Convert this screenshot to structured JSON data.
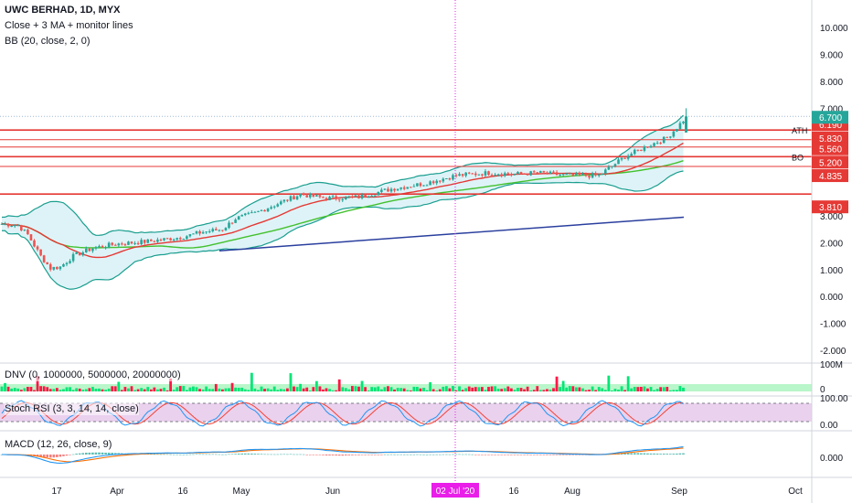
{
  "header": {
    "symbol_line": "UWC BERHAD, 1D, MYX",
    "study_1": "Close + 3 MA + monitor lines",
    "study_2": "BB (20, close, 2, 0)"
  },
  "panels": {
    "dnv_label": "DNV (0, 1000000, 5000000, 20000000)",
    "dnv_axis_top": "100M",
    "dnv_axis_bottom": "0",
    "stoch_label": "Stoch RSI (3, 3, 14, 14, close)",
    "stoch_axis_top": "100.00",
    "stoch_axis_bottom": "0.00",
    "macd_label": "MACD (12, 26, close, 9)",
    "macd_axis": "0.000"
  },
  "colors": {
    "bull": "#26a69a",
    "bear": "#ef5350",
    "level_line": "#e53935",
    "ma_red": "#e53935",
    "ma_green": "#43c12e",
    "ma_blue": "#2a3f9e",
    "bb_band": "#1a9e8f",
    "bb_fill": "#d6f0f5",
    "vol_green": "#00e676",
    "vol_red": "#ff1744",
    "rsi_fill": "#e1bee7",
    "stoch_k": "#2196f3",
    "stoch_d": "#f44336",
    "macd_line": "#2196f3",
    "signal_line": "#ff6d00",
    "hist_pos": "#26a69a",
    "hist_neg": "#ef5350",
    "date_highlight": "#e91ee9"
  },
  "chart_data": {
    "type": "candlestick",
    "title": "UWC BERHAD, 1D, MYX",
    "y_ticks": [
      "10.000",
      "9.000",
      "8.000",
      "7.000",
      "3.000",
      "2.000",
      "1.000",
      "0.000",
      "-1.000",
      "-2.000"
    ],
    "x_labels": [
      "17",
      "Apr",
      "16",
      "May",
      "Jun",
      "16",
      "Aug",
      "Sep",
      "Oct"
    ],
    "highlight_date": "02 Jul '20",
    "ylim": [
      -2.3,
      10.7
    ],
    "levels": [
      {
        "label": "ATH",
        "value": 6.19,
        "text": "6.190"
      },
      {
        "label": "",
        "value": 5.83,
        "text": "5.830"
      },
      {
        "label": "",
        "value": 5.56,
        "text": "5.560"
      },
      {
        "label": "BO",
        "value": 5.2,
        "text": "5.200"
      },
      {
        "label": "",
        "value": 4.835,
        "text": "4.835"
      },
      {
        "label": "",
        "value": 3.81,
        "text": "3.810"
      }
    ],
    "last_price": {
      "value": 6.7,
      "text": "6.700"
    },
    "price_anchors": [
      [
        0,
        2.7
      ],
      [
        5,
        2.65
      ],
      [
        8,
        2.3
      ],
      [
        12,
        1.5
      ],
      [
        15,
        1.05
      ],
      [
        18,
        1.1
      ],
      [
        22,
        1.5
      ],
      [
        28,
        1.8
      ],
      [
        35,
        1.95
      ],
      [
        45,
        2.05
      ],
      [
        55,
        2.2
      ],
      [
        62,
        2.4
      ],
      [
        68,
        2.5
      ],
      [
        72,
        2.9
      ],
      [
        78,
        3.1
      ],
      [
        84,
        3.4
      ],
      [
        92,
        3.8
      ],
      [
        100,
        3.65
      ],
      [
        110,
        3.7
      ],
      [
        120,
        4.0
      ],
      [
        130,
        4.2
      ],
      [
        140,
        4.5
      ],
      [
        150,
        4.6
      ],
      [
        158,
        4.55
      ],
      [
        165,
        4.6
      ],
      [
        175,
        4.5
      ],
      [
        184,
        4.5
      ],
      [
        192,
        5.2
      ],
      [
        200,
        5.65
      ],
      [
        205,
        5.9
      ],
      [
        210,
        6.55
      ]
    ]
  }
}
